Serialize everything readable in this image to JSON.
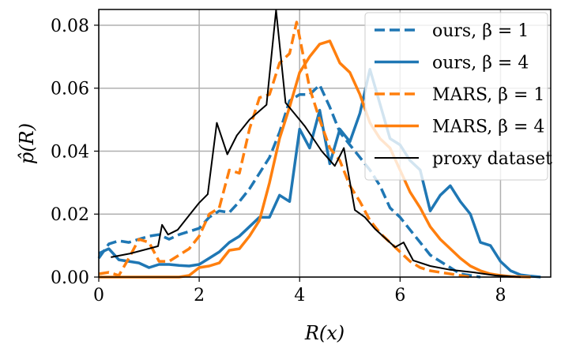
{
  "chart_data": {
    "type": "line",
    "title": "",
    "xlabel": "R(x)",
    "ylabel": "p̂(R)",
    "xlim": [
      0,
      9
    ],
    "ylim": [
      0,
      0.085
    ],
    "xticks": [
      "0",
      "2",
      "4",
      "6",
      "8"
    ],
    "yticks": [
      "0.00",
      "0.02",
      "0.04",
      "0.06",
      "0.08"
    ],
    "xtick_values": [
      0,
      2,
      4,
      6,
      8
    ],
    "ytick_values": [
      0,
      0.02,
      0.04,
      0.06,
      0.08
    ],
    "grid": true,
    "legend_position": "top-right",
    "series": [
      {
        "name": "ours, β = 1",
        "color": "#1f77b4",
        "dash": true,
        "x": [
          0,
          0.2,
          0.4,
          0.6,
          0.8,
          1.0,
          1.2,
          1.4,
          1.6,
          1.8,
          2.0,
          2.2,
          2.4,
          2.6,
          2.8,
          3.0,
          3.2,
          3.4,
          3.6,
          3.8,
          4.0,
          4.2,
          4.4,
          4.6,
          4.8,
          5.0,
          5.2,
          5.4,
          5.6,
          5.8,
          6.0,
          6.2,
          6.4,
          6.6,
          6.8,
          7.0,
          7.2,
          7.4,
          7.6
        ],
        "y": [
          0.006,
          0.0105,
          0.0115,
          0.011,
          0.012,
          0.013,
          0.0135,
          0.012,
          0.0135,
          0.0145,
          0.0155,
          0.019,
          0.021,
          0.0205,
          0.024,
          0.028,
          0.033,
          0.038,
          0.046,
          0.056,
          0.058,
          0.058,
          0.061,
          0.054,
          0.046,
          0.042,
          0.038,
          0.034,
          0.029,
          0.022,
          0.019,
          0.015,
          0.011,
          0.007,
          0.005,
          0.003,
          0.001,
          0.0005,
          0
        ]
      },
      {
        "name": "ours, β = 4",
        "color": "#1f77b4",
        "dash": false,
        "x": [
          0,
          0.2,
          0.4,
          0.6,
          0.8,
          1.0,
          1.2,
          1.4,
          1.6,
          1.8,
          2.0,
          2.2,
          2.4,
          2.6,
          2.8,
          3.0,
          3.2,
          3.4,
          3.6,
          3.8,
          4.0,
          4.2,
          4.4,
          4.6,
          4.8,
          5.0,
          5.2,
          5.4,
          5.6,
          5.8,
          6.0,
          6.2,
          6.4,
          6.6,
          6.8,
          7.0,
          7.2,
          7.4,
          7.6,
          7.8,
          8.0,
          8.2,
          8.4,
          8.6,
          8.8
        ],
        "y": [
          0.0075,
          0.009,
          0.0055,
          0.005,
          0.0045,
          0.003,
          0.004,
          0.004,
          0.0037,
          0.0035,
          0.004,
          0.006,
          0.008,
          0.011,
          0.013,
          0.016,
          0.019,
          0.019,
          0.026,
          0.024,
          0.047,
          0.041,
          0.053,
          0.036,
          0.047,
          0.043,
          0.052,
          0.066,
          0.055,
          0.044,
          0.042,
          0.037,
          0.034,
          0.021,
          0.026,
          0.029,
          0.024,
          0.02,
          0.011,
          0.01,
          0.005,
          0.002,
          0.0007,
          0.0003,
          0
        ]
      },
      {
        "name": "MARS, β = 1",
        "color": "#ff7f0e",
        "dash": true,
        "x": [
          0,
          0.2,
          0.4,
          0.6,
          0.8,
          1.0,
          1.2,
          1.4,
          1.6,
          1.8,
          2.0,
          2.2,
          2.4,
          2.6,
          2.8,
          3.0,
          3.2,
          3.4,
          3.6,
          3.8,
          3.94,
          4.2,
          4.4,
          4.6,
          4.8,
          5.0,
          5.2,
          5.4,
          5.6,
          5.8,
          6.0,
          6.2,
          6.4,
          6.6,
          6.8,
          7.0,
          7.2,
          7.4
        ],
        "y": [
          0.001,
          0.0015,
          0.0005,
          0.006,
          0.012,
          0.011,
          0.005,
          0.005,
          0.007,
          0.009,
          0.013,
          0.02,
          0.022,
          0.034,
          0.033,
          0.047,
          0.057,
          0.058,
          0.068,
          0.071,
          0.081,
          0.06,
          0.05,
          0.041,
          0.037,
          0.029,
          0.024,
          0.018,
          0.014,
          0.011,
          0.008,
          0.005,
          0.003,
          0.002,
          0.0015,
          0.001,
          0.0005,
          0
        ]
      },
      {
        "name": "MARS, β = 4",
        "color": "#ff7f0e",
        "dash": false,
        "x": [
          0,
          0.4,
          0.8,
          1.2,
          1.6,
          1.8,
          2.0,
          2.2,
          2.4,
          2.6,
          2.8,
          3.0,
          3.2,
          3.4,
          3.6,
          3.8,
          4.0,
          4.2,
          4.4,
          4.6,
          4.8,
          5.0,
          5.2,
          5.4,
          5.6,
          5.8,
          6.0,
          6.2,
          6.4,
          6.6,
          6.8,
          7.0,
          7.2,
          7.4,
          7.6,
          7.8,
          8.0,
          8.2,
          8.6
        ],
        "y": [
          0,
          0,
          0,
          0,
          0,
          0.0005,
          0.003,
          0.0035,
          0.0045,
          0.0085,
          0.009,
          0.013,
          0.018,
          0.03,
          0.044,
          0.054,
          0.065,
          0.07,
          0.074,
          0.075,
          0.068,
          0.065,
          0.058,
          0.049,
          0.044,
          0.041,
          0.034,
          0.027,
          0.022,
          0.016,
          0.012,
          0.009,
          0.006,
          0.0035,
          0.002,
          0.001,
          0.0005,
          0.0002,
          0
        ]
      },
      {
        "name": "proxy dataset",
        "color": "#000000",
        "dash": false,
        "x": [
          0.24,
          0.63,
          0.99,
          1.18,
          1.26,
          1.38,
          1.57,
          1.8,
          2.0,
          2.17,
          2.35,
          2.56,
          2.75,
          3.0,
          3.34,
          3.53,
          3.72,
          4.1,
          4.44,
          4.7,
          4.88,
          5.1,
          5.3,
          5.5,
          5.9,
          6.07,
          6.26,
          6.6,
          7.0,
          7.46,
          7.9,
          8.4
        ],
        "y": [
          0.0063,
          0.0075,
          0.009,
          0.0098,
          0.0166,
          0.0135,
          0.015,
          0.0196,
          0.0236,
          0.0263,
          0.049,
          0.039,
          0.045,
          0.05,
          0.0547,
          0.0848,
          0.0554,
          0.048,
          0.04,
          0.0353,
          0.041,
          0.0213,
          0.019,
          0.0153,
          0.0095,
          0.011,
          0.0053,
          0.0035,
          0.0023,
          0.0015,
          0.0005,
          0
        ]
      }
    ]
  }
}
